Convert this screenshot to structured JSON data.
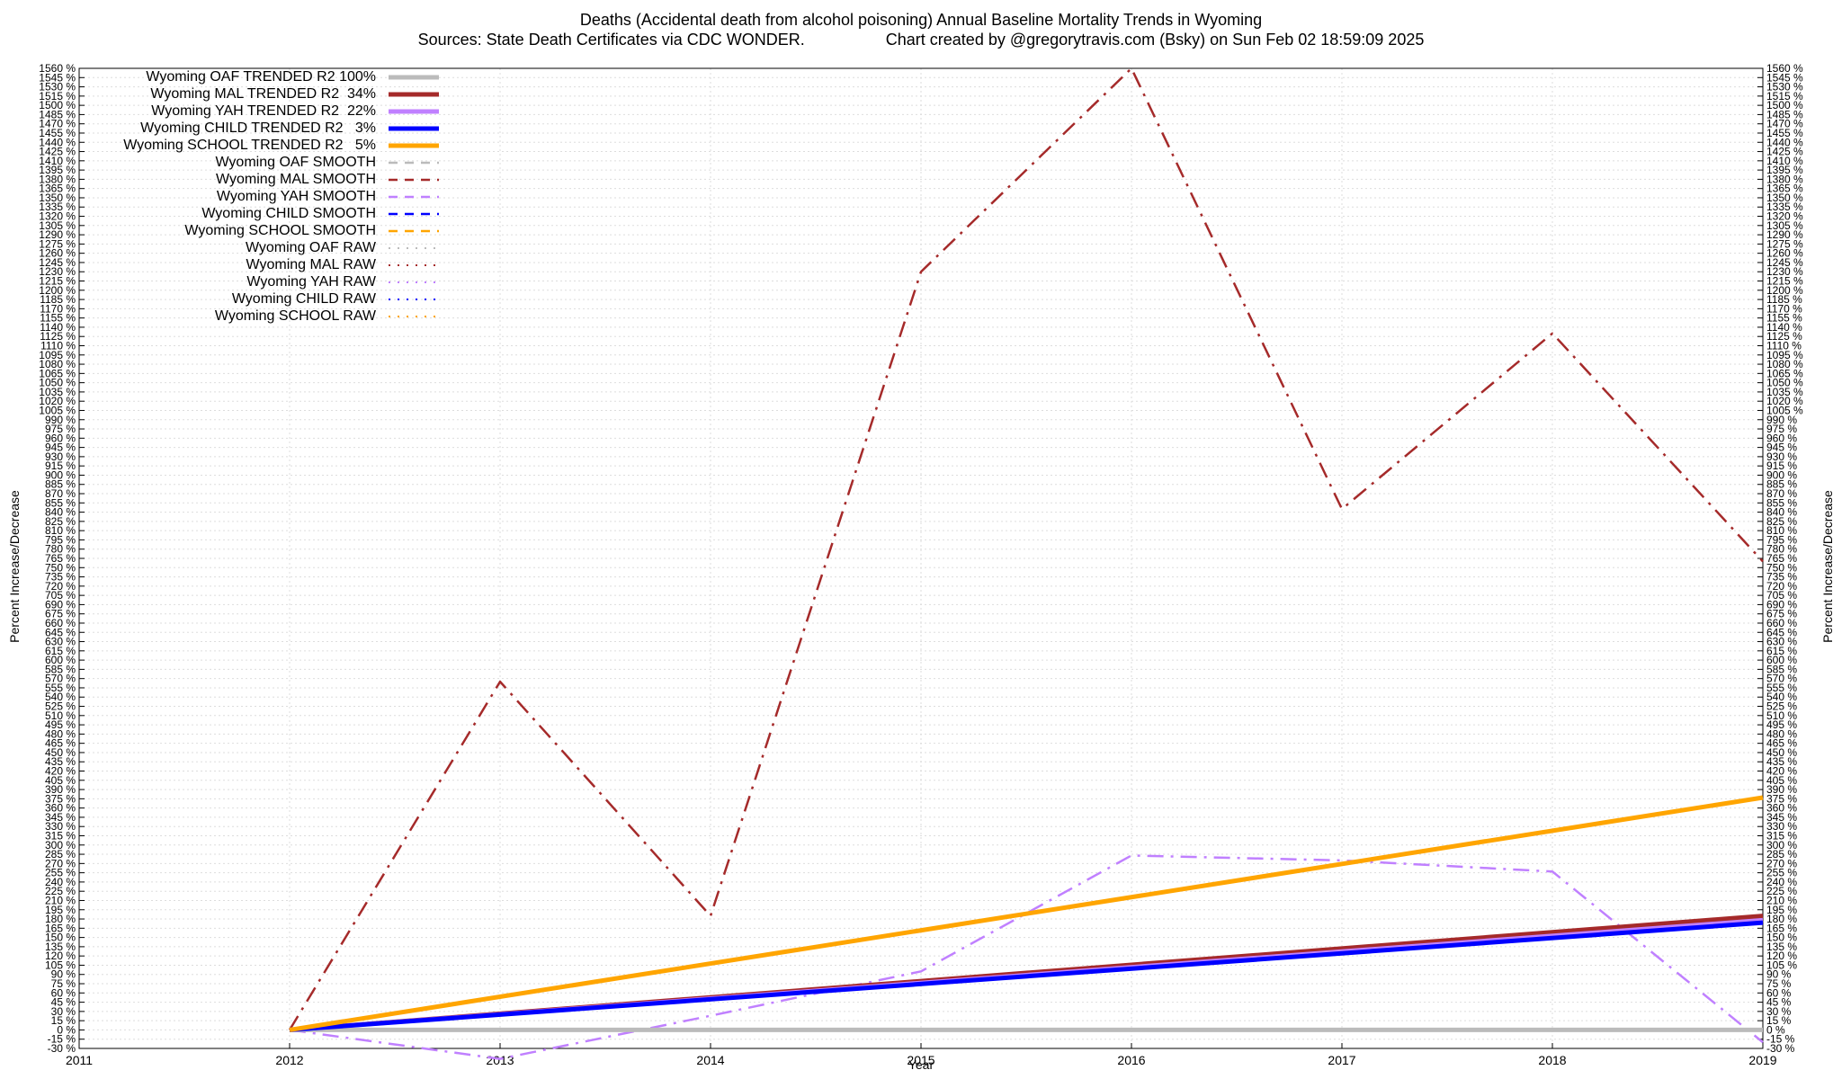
{
  "chart_data": {
    "type": "line",
    "title": "Deaths (Accidental death from alcohol poisoning)  Annual Baseline Mortality Trends in Wyoming",
    "subtitle": "Sources: State Death Certificates via CDC WONDER.                  Chart created by @gregorytravis.com (Bsky) on Sun Feb 02 18:59:09 2025",
    "xlabel": "Year",
    "ylabel_left": "Percent Increase/Decrease",
    "ylabel_right": "Percent Increase/Decrease",
    "xlim": [
      2011,
      2019
    ],
    "ylim": [
      -30,
      1560
    ],
    "x_ticks": [
      "2011",
      "2012",
      "2013",
      "2014",
      "2015",
      "2016",
      "2017",
      "2018",
      "2019"
    ],
    "y_tick_step": 15,
    "y_tick_suffix": " %",
    "grid": true,
    "legend_position": "top-left",
    "series": [
      {
        "name": "Wyoming OAF TRENDED R2 100%",
        "style": "trended",
        "color": "#bbbbbb",
        "x": [
          2012,
          2019
        ],
        "y": [
          0,
          0
        ]
      },
      {
        "name": "Wyoming MAL TRENDED R2  34%",
        "style": "trended",
        "color": "#a52a2a",
        "x": [
          2012,
          2019
        ],
        "y": [
          0,
          185
        ]
      },
      {
        "name": "Wyoming YAH TRENDED R2  22%",
        "style": "trended",
        "color": "#c080ff",
        "x": [
          2012,
          2019
        ],
        "y": [
          0,
          178
        ]
      },
      {
        "name": "Wyoming CHILD TRENDED R2   3%",
        "style": "trended",
        "color": "#0000ff",
        "x": [
          2012,
          2019
        ],
        "y": [
          0,
          174
        ]
      },
      {
        "name": "Wyoming SCHOOL TRENDED R2   5%",
        "style": "trended",
        "color": "#ffa500",
        "x": [
          2012,
          2019
        ],
        "y": [
          0,
          377
        ]
      },
      {
        "name": "Wyoming OAF SMOOTH",
        "style": "smooth",
        "color": "#bbbbbb",
        "x": [],
        "y": []
      },
      {
        "name": "Wyoming MAL SMOOTH",
        "style": "smooth",
        "color": "#a52a2a",
        "x": [
          2012,
          2013,
          2014,
          2015,
          2016,
          2017,
          2018,
          2019
        ],
        "y": [
          0,
          565,
          185,
          1230,
          1560,
          845,
          1130,
          760
        ]
      },
      {
        "name": "Wyoming YAH SMOOTH",
        "style": "smooth",
        "color": "#c080ff",
        "x": [
          2012,
          2013,
          2014,
          2015,
          2016,
          2017,
          2018,
          2019
        ],
        "y": [
          0,
          -47,
          23,
          95,
          283,
          275,
          257,
          -20
        ]
      },
      {
        "name": "Wyoming CHILD SMOOTH",
        "style": "smooth",
        "color": "#0000ff",
        "x": [],
        "y": []
      },
      {
        "name": "Wyoming SCHOOL SMOOTH",
        "style": "smooth",
        "color": "#ffa500",
        "x": [],
        "y": []
      },
      {
        "name": "Wyoming OAF RAW",
        "style": "raw",
        "color": "#bbbbbb",
        "x": [],
        "y": []
      },
      {
        "name": "Wyoming MAL RAW",
        "style": "raw",
        "color": "#a52a2a",
        "x": [],
        "y": []
      },
      {
        "name": "Wyoming YAH RAW",
        "style": "raw",
        "color": "#c080ff",
        "x": [],
        "y": []
      },
      {
        "name": "Wyoming CHILD RAW",
        "style": "raw",
        "color": "#0000ff",
        "x": [],
        "y": []
      },
      {
        "name": "Wyoming SCHOOL RAW",
        "style": "raw",
        "color": "#ffa500",
        "x": [],
        "y": []
      }
    ]
  }
}
